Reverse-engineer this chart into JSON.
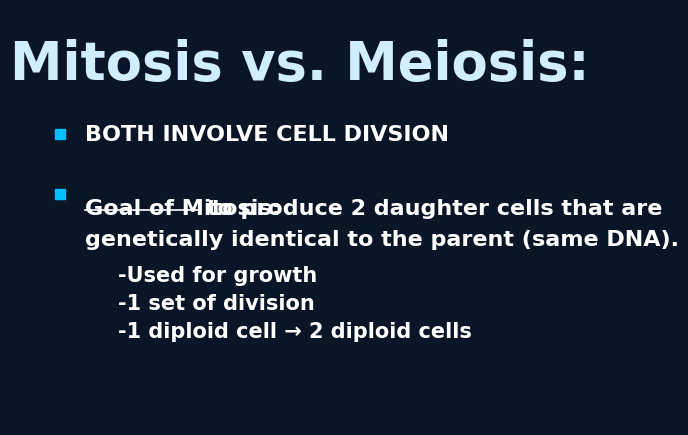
{
  "background_color": "#0a1628",
  "title": "Mitosis vs. Meiosis:",
  "title_color": "#d0eeff",
  "title_fontsize": 38,
  "bullet_color": "#00bfff",
  "bullet1_text": "BOTH INVOLVE CELL DIVSION",
  "bullet2_underline": "Goal of Mitosis:",
  "bullet2_rest_line1": " to produce 2 daughter cells that are",
  "bullet2_line2": "genetically identical to the parent (same DNA).",
  "sub1": "-Used for growth",
  "sub2": "-1 set of division",
  "sub3": "-1 diploid cell → 2 diploid cells",
  "text_color": "#ffffff",
  "body_fontsize": 16,
  "sub_fontsize": 15
}
